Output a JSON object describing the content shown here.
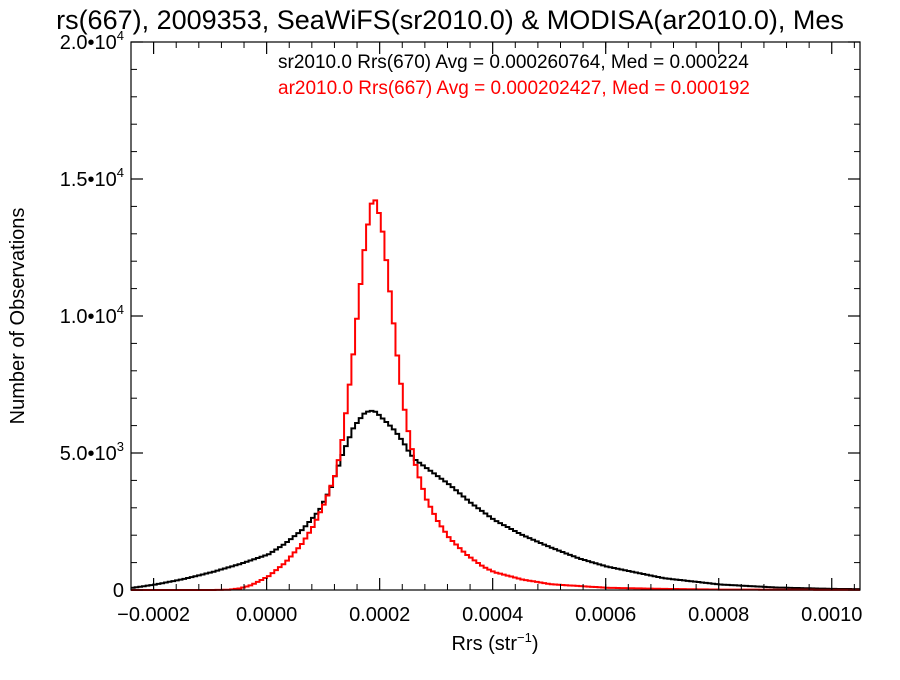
{
  "chart_data": {
    "type": "histogram",
    "title": "rs(667), 2009353, SeaWiFS(sr2010.0) & MODISA(ar2010.0), Mes",
    "xlabel": "Rrs (str",
    "xlabel_exp": "−1",
    "xlabel_close": ")",
    "ylabel": "Number of Observations",
    "xlim": [
      -0.00024,
      0.00105
    ],
    "ylim": [
      0,
      20000
    ],
    "x_ticks": [
      {
        "value": -0.0002,
        "label": "−0.0002"
      },
      {
        "value": 0.0,
        "label": "0.0000"
      },
      {
        "value": 0.0002,
        "label": "0.0002"
      },
      {
        "value": 0.0004,
        "label": "0.0004"
      },
      {
        "value": 0.0006,
        "label": "0.0006"
      },
      {
        "value": 0.0008,
        "label": "0.0008"
      },
      {
        "value": 0.001,
        "label": "0.0010"
      }
    ],
    "y_ticks": [
      {
        "value": 0,
        "label": "0",
        "exp": ""
      },
      {
        "value": 5000,
        "label": "5.0•10",
        "exp": "3"
      },
      {
        "value": 10000,
        "label": "1.0•10",
        "exp": "4"
      },
      {
        "value": 15000,
        "label": "1.5•10",
        "exp": "4"
      },
      {
        "value": 20000,
        "label": "2.0•10",
        "exp": "4"
      }
    ],
    "legend_placement": "top-right",
    "series": [
      {
        "name": "sr2010.0 Rrs(670) Avg = 0.000260764, Med = 0.000224",
        "color": "#000000",
        "x": [
          -0.00024,
          -0.0002,
          -0.00015,
          -0.0001,
          -5e-05,
          0.0,
          3e-05,
          6e-05,
          9e-05,
          0.00011,
          0.00012,
          0.00013,
          0.00014,
          0.00015,
          0.00016,
          0.00017,
          0.00018,
          0.00019,
          0.0002,
          0.00021,
          0.00022,
          0.00023,
          0.00024,
          0.00025,
          0.00026,
          0.00028,
          0.0003,
          0.00032,
          0.00034,
          0.00036,
          0.00038,
          0.0004,
          0.00045,
          0.0005,
          0.00055,
          0.0006,
          0.0007,
          0.0008,
          0.0009,
          0.001,
          0.00105
        ],
        "values": [
          80,
          200,
          400,
          650,
          950,
          1300,
          1700,
          2200,
          2900,
          3700,
          4300,
          4900,
          5400,
          5900,
          6200,
          6450,
          6550,
          6500,
          6300,
          6100,
          5900,
          5650,
          5350,
          5000,
          4750,
          4450,
          4150,
          3850,
          3500,
          3150,
          2850,
          2550,
          2000,
          1550,
          1150,
          850,
          430,
          200,
          90,
          40,
          30
        ]
      },
      {
        "name": "ar2010.0 Rrs(667) Avg = 0.000202427, Med = 0.000192",
        "color": "#ff0000",
        "x": [
          -0.00024,
          -0.0001,
          -7e-05,
          -5e-05,
          -3e-05,
          0.0,
          3e-05,
          6e-05,
          8e-05,
          0.0001,
          0.00012,
          0.00013,
          0.00014,
          0.00015,
          0.00016,
          0.00017,
          0.00018,
          0.000185,
          0.00019,
          0.0002,
          0.00021,
          0.00022,
          0.00023,
          0.00024,
          0.00025,
          0.00026,
          0.00027,
          0.00028,
          0.0003,
          0.00032,
          0.00035,
          0.00038,
          0.0004,
          0.00045,
          0.0005,
          0.0006,
          0.0007,
          0.0008,
          0.001,
          0.00105
        ],
        "values": [
          0,
          0,
          10,
          60,
          180,
          500,
          1000,
          1700,
          2350,
          3200,
          4300,
          5400,
          6900,
          8600,
          10600,
          12500,
          13900,
          14300,
          14200,
          13400,
          11800,
          10000,
          8200,
          6700,
          5500,
          4600,
          3900,
          3300,
          2500,
          1900,
          1300,
          850,
          650,
          380,
          210,
          80,
          40,
          15,
          5,
          5
        ]
      }
    ]
  }
}
